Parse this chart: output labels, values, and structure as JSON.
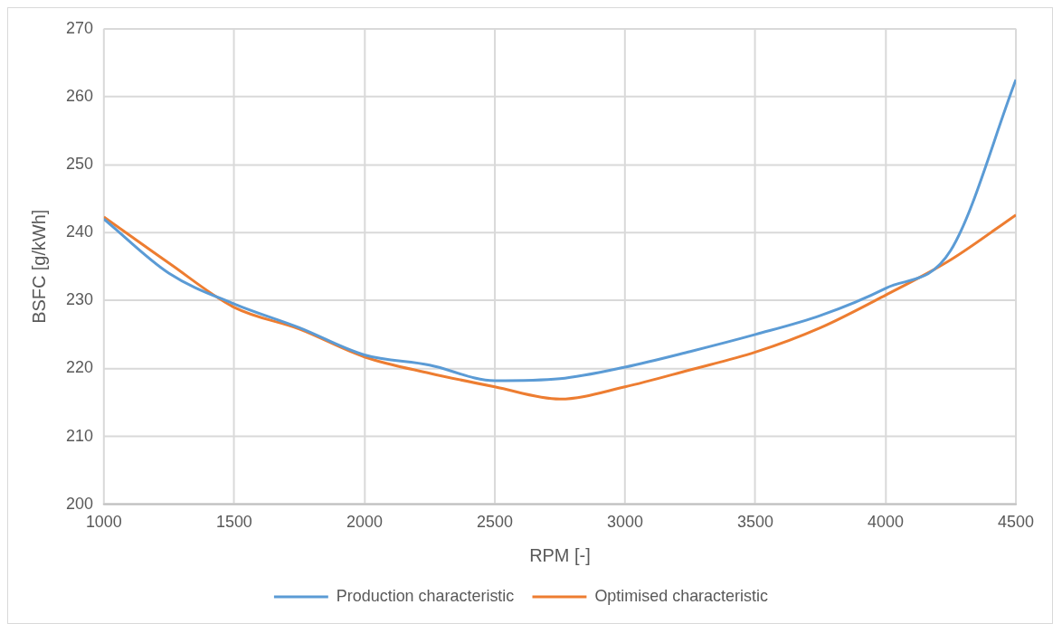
{
  "chart_data": {
    "type": "line",
    "xlabel": "RPM [-]",
    "ylabel": "BSFC [g/kWh]",
    "x": [
      1000,
      1250,
      1500,
      1750,
      2000,
      2250,
      2500,
      2750,
      3000,
      3250,
      3500,
      3750,
      4000,
      4250,
      4500
    ],
    "series": [
      {
        "name": "Production characteristic",
        "color": "#5b9bd5",
        "values": [
          242,
          234,
          229.5,
          226,
          222,
          220.5,
          218.2,
          218.5,
          220.2,
          222.5,
          225,
          227.8,
          231.8,
          237.4,
          262.5
        ]
      },
      {
        "name": "Optimised characteristic",
        "color": "#ed7d31",
        "values": [
          242.3,
          235.5,
          229,
          225.8,
          221.7,
          219.3,
          217.3,
          215.5,
          217.3,
          219.8,
          222.4,
          226,
          230.8,
          236,
          242.6
        ]
      }
    ],
    "xlim": [
      1000,
      4500
    ],
    "xticks": [
      1000,
      1500,
      2000,
      2500,
      3000,
      3500,
      4000,
      4500
    ],
    "ylim": [
      200,
      270
    ],
    "yticks": [
      200,
      210,
      220,
      230,
      240,
      250,
      260,
      270
    ],
    "grid": true,
    "legend": "bottom",
    "marker": "none",
    "line_style": "solid"
  }
}
